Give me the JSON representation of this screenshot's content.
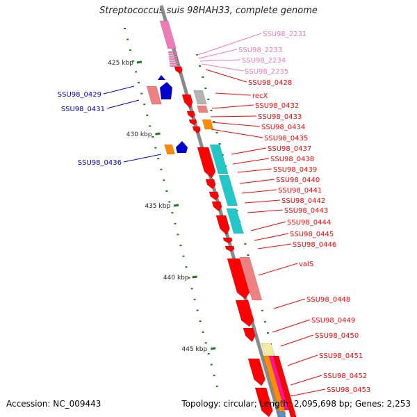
{
  "title": "Streptococcus suis 98HAH33, complete genome",
  "footer": {
    "accession": "Accession: NC_009443",
    "summary": "Topology: circular; Length: 2,095,698 bp; Genes: 2,253"
  },
  "colors": {
    "backbone": "#8a8a8a",
    "tick": "#1e7a1e",
    "pink": "#f07ab8",
    "red": "#ff0000",
    "red_dark": "#b80000",
    "blue": "#0000cc",
    "salmon": "#ef8080",
    "cyan": "#22c8c8",
    "orange": "#ff8c00",
    "grey": "#b4b4b4",
    "lightyellow": "#f2eca0",
    "magenta": "#ff1493",
    "steelblue": "#5d8fc9"
  },
  "scale_labels": [
    "425 kbp",
    "430 kbp",
    "435 kbp",
    "440 kbp",
    "445 kbp"
  ],
  "gene_labels_left": [
    {
      "text": "SSU98_0429",
      "color": "blue"
    },
    {
      "text": "SSU98_0431",
      "color": "blue"
    },
    {
      "text": "SSU98_0436",
      "color": "blue"
    }
  ],
  "gene_labels_right": [
    {
      "text": "SSU98_2231",
      "color": "pink"
    },
    {
      "text": "SSU98_2233",
      "color": "pink"
    },
    {
      "text": "SSU98_2234",
      "color": "pink"
    },
    {
      "text": "SSU98_2235",
      "color": "pink"
    },
    {
      "text": "SSU98_0428",
      "color": "red"
    },
    {
      "text": "recX",
      "color": "red"
    },
    {
      "text": "SSU98_0432",
      "color": "red"
    },
    {
      "text": "SSU98_0433",
      "color": "red"
    },
    {
      "text": "SSU98_0434",
      "color": "red"
    },
    {
      "text": "SSU98_0435",
      "color": "red"
    },
    {
      "text": "SSU98_0437",
      "color": "red"
    },
    {
      "text": "SSU98_0438",
      "color": "red"
    },
    {
      "text": "SSU98_0439",
      "color": "red"
    },
    {
      "text": "SSU98_0440",
      "color": "red"
    },
    {
      "text": "SSU98_0441",
      "color": "red"
    },
    {
      "text": "SSU98_0442",
      "color": "red"
    },
    {
      "text": "SSU98_0443",
      "color": "red"
    },
    {
      "text": "SSU98_0444",
      "color": "red"
    },
    {
      "text": "SSU98_0445",
      "color": "red"
    },
    {
      "text": "SSU98_0446",
      "color": "red"
    },
    {
      "text": "valS",
      "color": "red"
    },
    {
      "text": "SSU98_0448",
      "color": "red"
    },
    {
      "text": "SSU98_0449",
      "color": "red"
    },
    {
      "text": "SSU98_0450",
      "color": "red"
    },
    {
      "text": "SSU98_0451",
      "color": "red"
    },
    {
      "text": "SSU98_0452",
      "color": "red"
    },
    {
      "text": "SSU98_0453",
      "color": "red"
    }
  ]
}
